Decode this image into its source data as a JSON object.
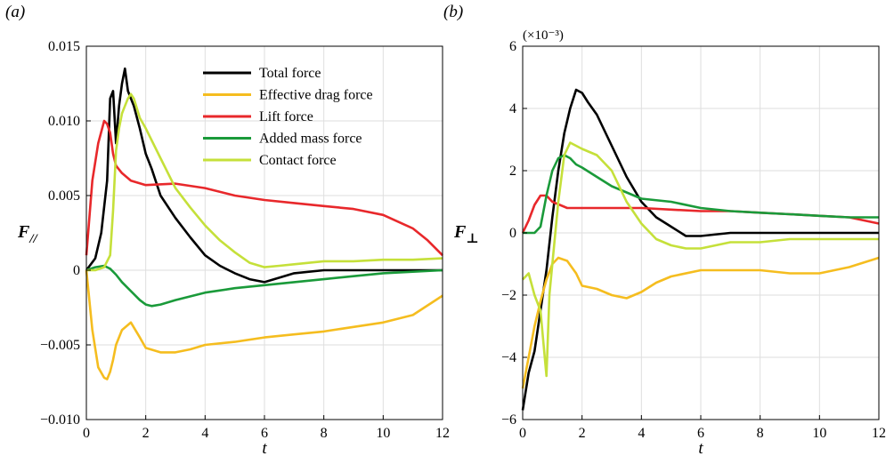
{
  "chart_data": [
    {
      "type": "line",
      "panel_label": "(a)",
      "xlabel": "t",
      "ylabel": "F//",
      "xlim": [
        0,
        12
      ],
      "ylim": [
        -0.01,
        0.015
      ],
      "grid": true,
      "legend_position": "top-right",
      "x_ticks": [
        0,
        2,
        4,
        6,
        8,
        10,
        12
      ],
      "x_tick_labels": [
        "0",
        "2",
        "4",
        "6",
        "8",
        "10",
        "12"
      ],
      "y_ticks": [
        -0.01,
        -0.005,
        0,
        0.005,
        0.01,
        0.015
      ],
      "y_tick_labels": [
        "−0.010",
        "−0.005",
        "0",
        "0.005",
        "0.010",
        "0.015"
      ],
      "series": [
        {
          "name": "Total force",
          "color": "#000000",
          "x": [
            0,
            0.3,
            0.5,
            0.7,
            0.8,
            0.9,
            1.0,
            1.1,
            1.2,
            1.3,
            1.4,
            1.6,
            1.8,
            2.0,
            2.2,
            2.5,
            3.0,
            3.5,
            4.0,
            4.5,
            5.0,
            5.5,
            6.0,
            6.5,
            7.0,
            8.0,
            9.0,
            10.0,
            11.0,
            12.0
          ],
          "y": [
            0,
            0.0008,
            0.0025,
            0.006,
            0.0115,
            0.012,
            0.0085,
            0.011,
            0.0125,
            0.0135,
            0.012,
            0.011,
            0.0095,
            0.0078,
            0.0068,
            0.005,
            0.0035,
            0.0022,
            0.001,
            0.0003,
            -0.0002,
            -0.0006,
            -0.0008,
            -0.0005,
            -0.0002,
            0,
            0,
            0,
            0,
            0
          ]
        },
        {
          "name": "Effective drag force",
          "color": "#F5BD1F",
          "x": [
            0,
            0.2,
            0.4,
            0.6,
            0.7,
            0.8,
            0.9,
            1.0,
            1.2,
            1.5,
            1.8,
            2.0,
            2.5,
            3.0,
            3.5,
            4.0,
            5.0,
            6.0,
            7.0,
            8.0,
            9.0,
            10.0,
            11.0,
            12.0
          ],
          "y": [
            0,
            -0.004,
            -0.0065,
            -0.0072,
            -0.0073,
            -0.0068,
            -0.006,
            -0.005,
            -0.004,
            -0.0035,
            -0.0045,
            -0.0052,
            -0.0055,
            -0.0055,
            -0.0053,
            -0.005,
            -0.0048,
            -0.0045,
            -0.0043,
            -0.0041,
            -0.0038,
            -0.0035,
            -0.003,
            -0.0017
          ]
        },
        {
          "name": "Lift force",
          "color": "#E8282B",
          "x": [
            0,
            0.2,
            0.4,
            0.6,
            0.7,
            0.8,
            0.9,
            1.0,
            1.2,
            1.5,
            2.0,
            3.0,
            4.0,
            5.0,
            6.0,
            7.0,
            8.0,
            9.0,
            10.0,
            11.0,
            11.5,
            12.0
          ],
          "y": [
            0.001,
            0.006,
            0.0085,
            0.01,
            0.0098,
            0.0092,
            0.0078,
            0.007,
            0.0065,
            0.006,
            0.0057,
            0.0058,
            0.0055,
            0.005,
            0.0047,
            0.0045,
            0.0043,
            0.0041,
            0.0037,
            0.0028,
            0.002,
            0.001
          ]
        },
        {
          "name": "Added mass force",
          "color": "#1A9A3A",
          "x": [
            0,
            0.3,
            0.6,
            0.8,
            1.0,
            1.2,
            1.5,
            1.8,
            2.0,
            2.2,
            2.5,
            3.0,
            4.0,
            5.0,
            6.0,
            7.0,
            8.0,
            9.0,
            10.0,
            11.0,
            12.0
          ],
          "y": [
            0,
            0.0002,
            0.0003,
            0.0001,
            -0.0003,
            -0.0008,
            -0.0014,
            -0.002,
            -0.0023,
            -0.0024,
            -0.0023,
            -0.002,
            -0.0015,
            -0.0012,
            -0.001,
            -0.0008,
            -0.0006,
            -0.0004,
            -0.0002,
            -0.0001,
            0
          ]
        },
        {
          "name": "Contact force",
          "color": "#C5E03A",
          "x": [
            0,
            0.3,
            0.6,
            0.8,
            0.9,
            1.0,
            1.1,
            1.2,
            1.3,
            1.4,
            1.5,
            1.6,
            1.8,
            2.0,
            2.5,
            3.0,
            3.5,
            4.0,
            4.5,
            5.0,
            5.5,
            6.0,
            6.5,
            7.0,
            8.0,
            9.0,
            10.0,
            11.0,
            12.0
          ],
          "y": [
            0,
            0,
            0.0002,
            0.001,
            0.004,
            0.008,
            0.0095,
            0.0105,
            0.011,
            0.0115,
            0.0118,
            0.0115,
            0.0102,
            0.0095,
            0.0075,
            0.0055,
            0.0042,
            0.003,
            0.002,
            0.0012,
            0.0005,
            0.0002,
            0.0003,
            0.0004,
            0.0006,
            0.0006,
            0.0007,
            0.0007,
            0.0008
          ]
        }
      ]
    },
    {
      "type": "line",
      "panel_label": "(b)",
      "xlabel": "t",
      "ylabel": "F⊥",
      "multiplier": "(×10⁻³)",
      "xlim": [
        0,
        12
      ],
      "ylim": [
        -6,
        6
      ],
      "grid": true,
      "x_ticks": [
        0,
        2,
        4,
        6,
        8,
        10,
        12
      ],
      "x_tick_labels": [
        "0",
        "2",
        "4",
        "6",
        "8",
        "10",
        "12"
      ],
      "y_ticks": [
        -6,
        -4,
        -2,
        0,
        2,
        4,
        6
      ],
      "y_tick_labels": [
        "−6",
        "−4",
        "−2",
        "0",
        "2",
        "4",
        "6"
      ],
      "series": [
        {
          "name": "Total force",
          "color": "#000000",
          "x": [
            0,
            0.2,
            0.4,
            0.6,
            0.8,
            1.0,
            1.2,
            1.4,
            1.6,
            1.8,
            2.0,
            2.2,
            2.5,
            3.0,
            3.5,
            4.0,
            4.5,
            5.0,
            5.5,
            6.0,
            7.0,
            8.0,
            9.0,
            10.0,
            11.0,
            12.0
          ],
          "y": [
            -5.7,
            -4.5,
            -3.8,
            -2.5,
            -1.2,
            0.5,
            2.0,
            3.2,
            4.0,
            4.6,
            4.5,
            4.2,
            3.8,
            2.8,
            1.8,
            1.0,
            0.5,
            0.2,
            -0.1,
            -0.1,
            0,
            0,
            0,
            0,
            0,
            0
          ]
        },
        {
          "name": "Effective drag force",
          "color": "#F5BD1F",
          "x": [
            0,
            0.2,
            0.4,
            0.6,
            0.8,
            1.0,
            1.2,
            1.5,
            1.8,
            2.0,
            2.5,
            3.0,
            3.5,
            4.0,
            4.5,
            5.0,
            6.0,
            7.0,
            8.0,
            9.0,
            10.0,
            11.0,
            12.0
          ],
          "y": [
            -5.0,
            -4.0,
            -3.0,
            -2.2,
            -1.5,
            -1.0,
            -0.8,
            -0.9,
            -1.3,
            -1.7,
            -1.8,
            -2.0,
            -2.1,
            -1.9,
            -1.6,
            -1.4,
            -1.2,
            -1.2,
            -1.2,
            -1.3,
            -1.3,
            -1.1,
            -0.8
          ]
        },
        {
          "name": "Lift force",
          "color": "#E8282B",
          "x": [
            0,
            0.2,
            0.4,
            0.6,
            0.8,
            1.0,
            1.5,
            2.0,
            3.0,
            4.0,
            5.0,
            6.0,
            7.0,
            8.0,
            9.0,
            10.0,
            11.0,
            12.0
          ],
          "y": [
            0,
            0.4,
            0.9,
            1.2,
            1.2,
            1.0,
            0.8,
            0.8,
            0.8,
            0.8,
            0.75,
            0.7,
            0.7,
            0.65,
            0.6,
            0.55,
            0.5,
            0.3
          ]
        },
        {
          "name": "Added mass force",
          "color": "#1A9A3A",
          "x": [
            0,
            0.2,
            0.4,
            0.6,
            0.8,
            1.0,
            1.2,
            1.4,
            1.6,
            1.8,
            2.0,
            2.5,
            3.0,
            3.5,
            4.0,
            5.0,
            6.0,
            7.0,
            8.0,
            9.0,
            10.0,
            11.0,
            12.0
          ],
          "y": [
            0,
            0,
            0,
            0.2,
            1.2,
            2.0,
            2.4,
            2.5,
            2.4,
            2.2,
            2.1,
            1.8,
            1.5,
            1.3,
            1.1,
            1.0,
            0.8,
            0.7,
            0.65,
            0.6,
            0.55,
            0.5,
            0.5
          ]
        },
        {
          "name": "Contact force",
          "color": "#C5E03A",
          "x": [
            0,
            0.2,
            0.4,
            0.6,
            0.8,
            0.9,
            1.0,
            1.2,
            1.4,
            1.6,
            1.8,
            2.0,
            2.5,
            3.0,
            3.5,
            4.0,
            4.5,
            5.0,
            5.5,
            6.0,
            6.5,
            7.0,
            8.0,
            9.0,
            10.0,
            11.0,
            12.0
          ],
          "y": [
            -1.5,
            -1.3,
            -2.0,
            -2.5,
            -4.6,
            -2.0,
            -1.0,
            1.0,
            2.5,
            2.9,
            2.8,
            2.7,
            2.5,
            2.0,
            1.0,
            0.3,
            -0.2,
            -0.4,
            -0.5,
            -0.5,
            -0.4,
            -0.3,
            -0.3,
            -0.2,
            -0.2,
            -0.2,
            -0.2
          ]
        }
      ]
    }
  ]
}
